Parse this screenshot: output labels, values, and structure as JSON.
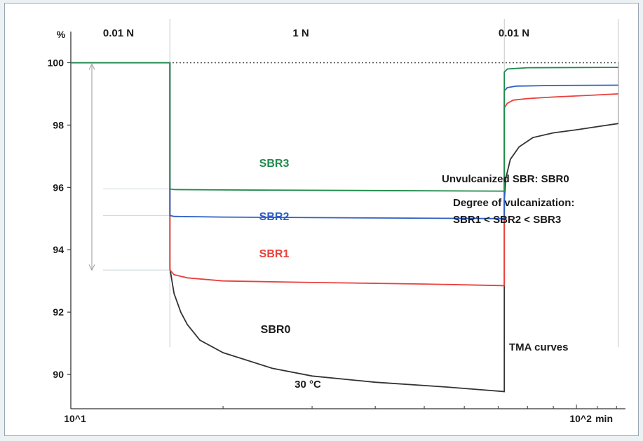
{
  "chart_data": {
    "type": "line",
    "title": "",
    "xlabel": "",
    "ylabel": "%",
    "x_unit": "min",
    "x_scale": "log",
    "xlim": [
      10,
      125
    ],
    "ylim": [
      88.9,
      101
    ],
    "x_ticks": [
      {
        "value": 10,
        "label": "10^1"
      },
      {
        "value": 100,
        "label": "10^2"
      }
    ],
    "y_ticks": [
      100,
      98,
      96,
      94,
      92,
      90
    ],
    "load_segments": [
      {
        "label": "0.01 N",
        "from": 10,
        "to": 15.7
      },
      {
        "label": "1 N",
        "from": 15.7,
        "to": 72
      },
      {
        "label": "0.01 N",
        "from": 72,
        "to": 125
      }
    ],
    "reference_line": {
      "y": 100,
      "style": "dotted"
    },
    "temperature_label": "30 °C",
    "annotations": [
      "Unvulcanized SBR: SBR0",
      "Degree of vulcanization:",
      "SBR1 < SBR2 < SBR3",
      "TMA curves"
    ],
    "series": [
      {
        "name": "SBR0",
        "color": "#333333",
        "points": [
          [
            10,
            100
          ],
          [
            15.7,
            100
          ],
          [
            15.7,
            93.4
          ],
          [
            16,
            92.6
          ],
          [
            16.5,
            92.0
          ],
          [
            17,
            91.6
          ],
          [
            18,
            91.1
          ],
          [
            20,
            90.7
          ],
          [
            25,
            90.2
          ],
          [
            30,
            89.95
          ],
          [
            40,
            89.75
          ],
          [
            55,
            89.6
          ],
          [
            72,
            89.45
          ],
          [
            72,
            95.6
          ],
          [
            72.5,
            96.3
          ],
          [
            74,
            96.9
          ],
          [
            77,
            97.3
          ],
          [
            82,
            97.6
          ],
          [
            90,
            97.75
          ],
          [
            100,
            97.85
          ],
          [
            110,
            97.95
          ],
          [
            121,
            98.05
          ]
        ]
      },
      {
        "name": "SBR1",
        "color": "#e8413c",
        "points": [
          [
            10,
            100
          ],
          [
            15.7,
            100
          ],
          [
            15.7,
            93.35
          ],
          [
            16,
            93.2
          ],
          [
            17,
            93.1
          ],
          [
            20,
            93.0
          ],
          [
            30,
            92.95
          ],
          [
            50,
            92.9
          ],
          [
            72,
            92.85
          ],
          [
            72,
            98.55
          ],
          [
            73,
            98.7
          ],
          [
            75,
            98.8
          ],
          [
            80,
            98.85
          ],
          [
            90,
            98.9
          ],
          [
            105,
            98.95
          ],
          [
            121,
            99.0
          ]
        ]
      },
      {
        "name": "SBR2",
        "color": "#2d5fc6",
        "points": [
          [
            10,
            100
          ],
          [
            15.7,
            100
          ],
          [
            15.7,
            95.1
          ],
          [
            16,
            95.07
          ],
          [
            20,
            95.05
          ],
          [
            40,
            95.02
          ],
          [
            72,
            95.0
          ],
          [
            72,
            99.1
          ],
          [
            73,
            99.2
          ],
          [
            76,
            99.25
          ],
          [
            90,
            99.27
          ],
          [
            121,
            99.28
          ]
        ]
      },
      {
        "name": "SBR3",
        "color": "#1f8a4a",
        "points": [
          [
            10,
            100
          ],
          [
            15.7,
            100
          ],
          [
            15.7,
            95.95
          ],
          [
            16,
            95.93
          ],
          [
            20,
            95.92
          ],
          [
            40,
            95.9
          ],
          [
            72,
            95.88
          ],
          [
            72,
            99.7
          ],
          [
            73,
            99.8
          ],
          [
            80,
            99.84
          ],
          [
            121,
            99.85
          ]
        ]
      }
    ]
  }
}
